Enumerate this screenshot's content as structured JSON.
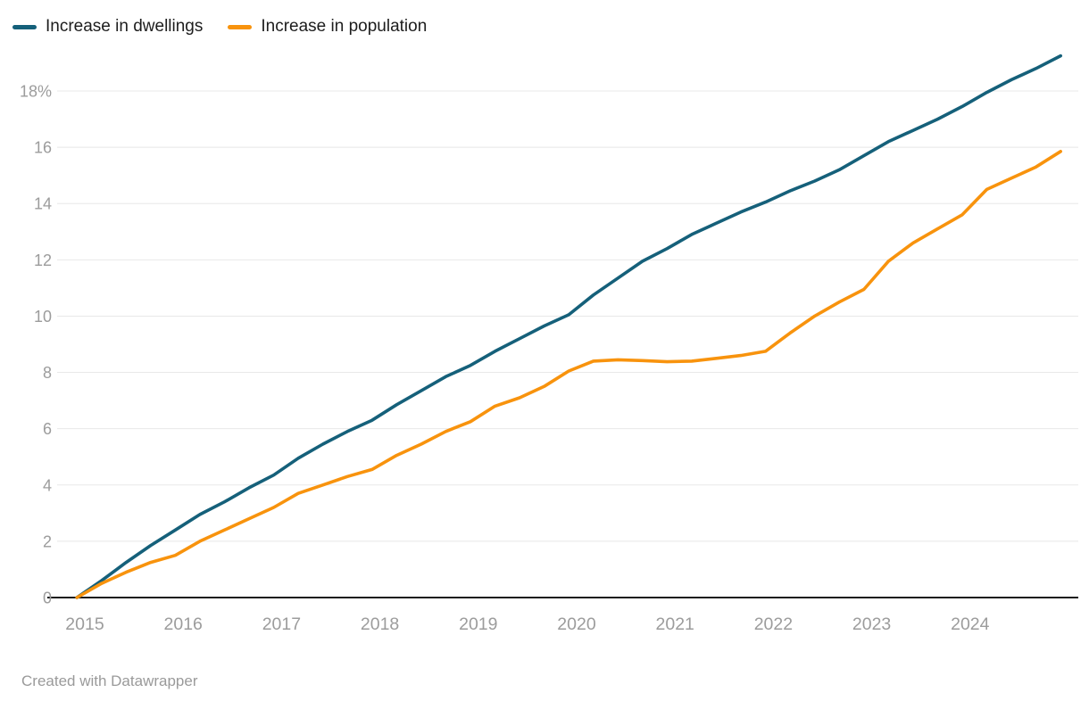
{
  "footer": {
    "credit": "Created with Datawrapper"
  },
  "chart_data": {
    "type": "line",
    "title": "",
    "legend_position": "top-left",
    "grid": "horizontal",
    "x_period": "quarterly",
    "x_axis": {
      "tick_values": [
        2015,
        2016,
        2017,
        2018,
        2019,
        2020,
        2021,
        2022,
        2023,
        2024
      ],
      "tick_labels": [
        "2015",
        "2016",
        "2017",
        "2018",
        "2019",
        "2020",
        "2021",
        "2022",
        "2023",
        "2024"
      ],
      "range": [
        2014.75,
        2025.1
      ]
    },
    "y_axis": {
      "tick_values": [
        0,
        2,
        4,
        6,
        8,
        10,
        12,
        14,
        16,
        18
      ],
      "tick_labels": [
        "0",
        "2",
        "4",
        "6",
        "8",
        "10",
        "12",
        "14",
        "16",
        "18%"
      ],
      "range": [
        0,
        18
      ],
      "unit": "%"
    },
    "x": [
      2014.92,
      2015.17,
      2015.42,
      2015.67,
      2015.92,
      2016.17,
      2016.42,
      2016.67,
      2016.92,
      2017.17,
      2017.42,
      2017.67,
      2017.92,
      2018.17,
      2018.42,
      2018.67,
      2018.92,
      2019.17,
      2019.42,
      2019.67,
      2019.92,
      2020.17,
      2020.42,
      2020.67,
      2020.92,
      2021.17,
      2021.42,
      2021.67,
      2021.92,
      2022.17,
      2022.42,
      2022.67,
      2022.92,
      2023.17,
      2023.42,
      2023.67,
      2023.92,
      2024.17,
      2024.42,
      2024.67,
      2024.92
    ],
    "series": [
      {
        "name": "Increase in dwellings",
        "color": "#15607a",
        "values": [
          0,
          0.6,
          1.25,
          1.85,
          2.4,
          2.95,
          3.4,
          3.9,
          4.35,
          4.95,
          5.45,
          5.9,
          6.3,
          6.85,
          7.35,
          7.85,
          8.25,
          8.75,
          9.2,
          9.65,
          10.05,
          10.75,
          11.35,
          11.95,
          12.4,
          12.9,
          13.3,
          13.7,
          14.05,
          14.45,
          14.8,
          15.2,
          15.7,
          16.2,
          16.6,
          17.0,
          17.45,
          17.95,
          18.4,
          18.8,
          19.25
        ]
      },
      {
        "name": "Increase in population",
        "color": "#f8930d",
        "values": [
          0,
          0.5,
          0.9,
          1.25,
          1.5,
          2.0,
          2.4,
          2.8,
          3.2,
          3.7,
          4.0,
          4.3,
          4.55,
          5.05,
          5.45,
          5.9,
          6.25,
          6.8,
          7.1,
          7.5,
          8.05,
          8.4,
          8.45,
          8.42,
          8.38,
          8.4,
          8.5,
          8.6,
          8.75,
          9.4,
          10.0,
          10.5,
          10.95,
          11.95,
          12.6,
          13.1,
          13.6,
          14.5,
          14.9,
          15.3,
          15.85
        ]
      }
    ],
    "axis_color": "#1a1a1a",
    "gridline_color": "#e8e8e8",
    "tick_label_color": "#9c9c9c"
  }
}
